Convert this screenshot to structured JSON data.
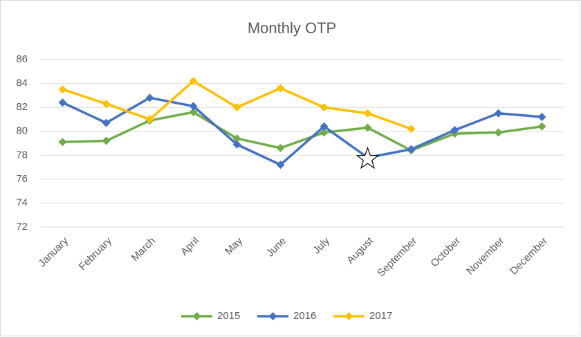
{
  "chart_data": {
    "type": "line",
    "title": "Monthly OTP",
    "categories": [
      "January",
      "February",
      "March",
      "April",
      "May",
      "June",
      "July",
      "August",
      "September",
      "October",
      "November",
      "December"
    ],
    "series": [
      {
        "name": "2015",
        "color": "#70ad47",
        "values": [
          79.1,
          79.2,
          80.9,
          81.6,
          79.4,
          78.6,
          79.9,
          80.3,
          78.4,
          79.8,
          79.9,
          80.4
        ]
      },
      {
        "name": "2016",
        "color": "#4472c4",
        "values": [
          82.4,
          80.7,
          82.8,
          82.1,
          78.9,
          77.2,
          80.4,
          77.8,
          78.5,
          80.1,
          81.5,
          81.2
        ]
      },
      {
        "name": "2017",
        "color": "#ffc000",
        "values": [
          83.5,
          82.3,
          81.0,
          84.2,
          82.0,
          83.6,
          82.0,
          81.5,
          80.2,
          null,
          null,
          null
        ]
      }
    ],
    "ylim": [
      72,
      86
    ],
    "yticks": [
      72,
      74,
      76,
      78,
      80,
      82,
      84,
      86
    ],
    "grid": true,
    "legend": "bottom"
  }
}
